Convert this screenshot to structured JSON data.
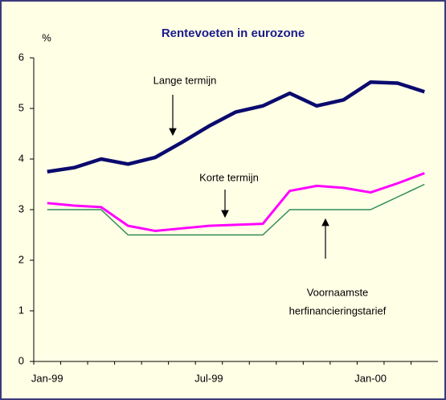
{
  "chart_data": {
    "type": "line",
    "title": "Rentevoeten in eurozone",
    "y_unit": "%",
    "categories": [
      "Jan-99",
      null,
      null,
      null,
      null,
      null,
      "Jul-99",
      null,
      null,
      null,
      null,
      null,
      "Jan-00",
      null,
      null
    ],
    "series": [
      {
        "name": "Lange termijn",
        "color": "#0a0a6e",
        "width": 4.5,
        "values": [
          3.75,
          3.83,
          4.0,
          3.9,
          4.03,
          4.33,
          4.65,
          4.93,
          5.05,
          5.3,
          5.05,
          5.17,
          5.52,
          5.5,
          5.33
        ]
      },
      {
        "name": "Korte termijn",
        "color": "#ff00ff",
        "width": 3,
        "values": [
          3.13,
          3.08,
          3.05,
          2.68,
          2.58,
          2.63,
          2.68,
          2.7,
          2.72,
          3.37,
          3.47,
          3.43,
          3.34,
          3.52,
          3.72
        ]
      },
      {
        "name": "Voornaamste herfinancieringstarief",
        "name_lines": [
          "Voornaamste",
          "herfinancieringstarief"
        ],
        "color": "#2e8b57",
        "width": 1.5,
        "values": [
          3.0,
          3.0,
          3.0,
          2.5,
          2.5,
          2.5,
          2.5,
          2.5,
          2.5,
          3.0,
          3.0,
          3.0,
          3.0,
          3.25,
          3.5
        ]
      }
    ],
    "ylim": [
      0,
      6
    ],
    "yticks": [
      0,
      1,
      2,
      3,
      4,
      5,
      6
    ]
  }
}
